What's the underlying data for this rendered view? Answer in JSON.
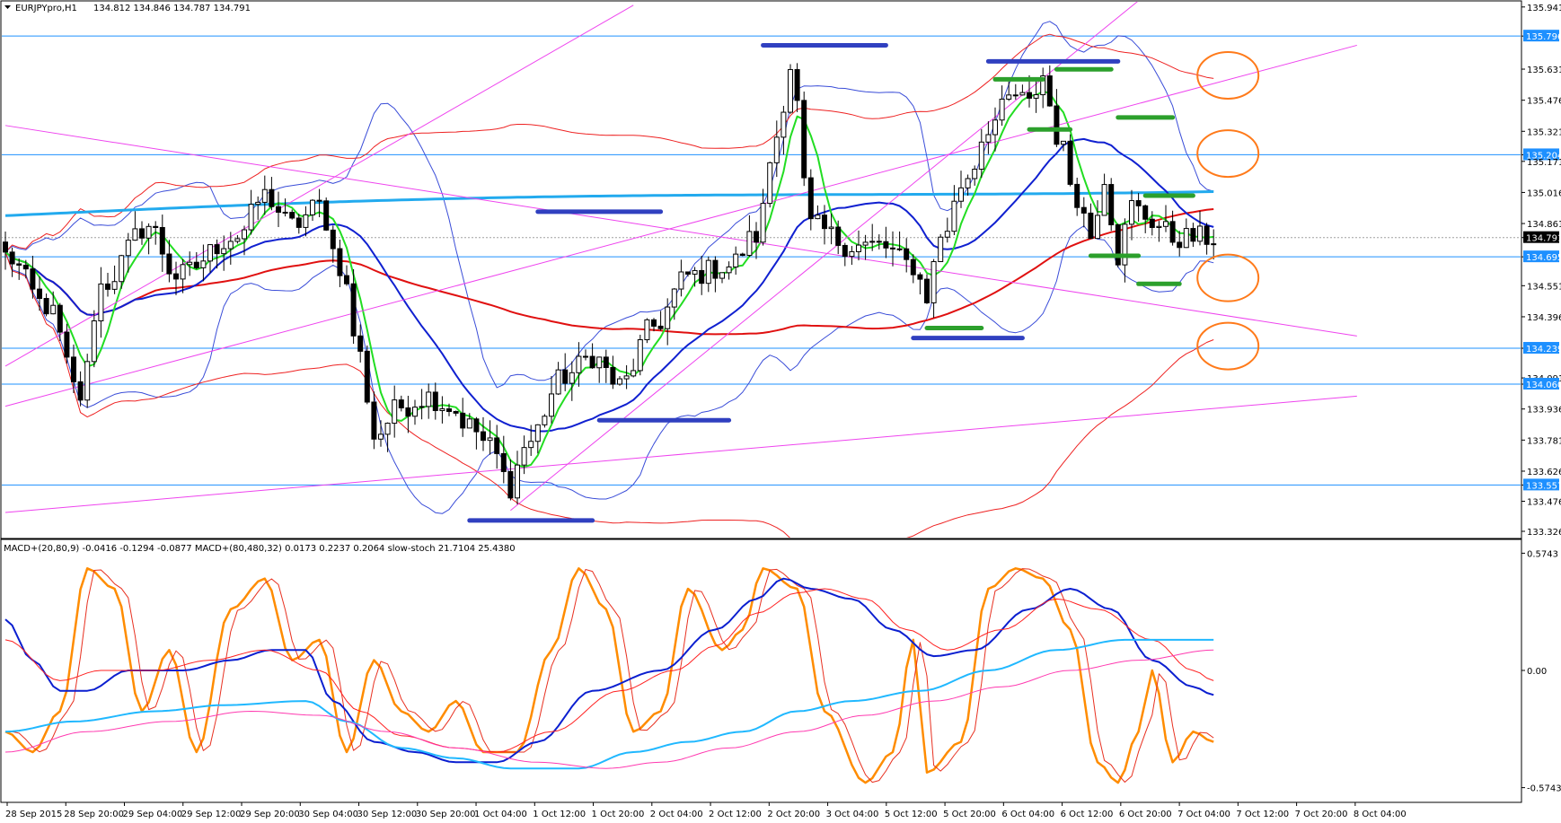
{
  "header": {
    "symbol_text": "EURJPYpro,H1",
    "ohlc_text": "134.812 134.846 134.787 134.791",
    "indicator_text": "MACD+(20,80,9) -0.0416 -0.1294 -0.0877  MACD+(80,480,32) 0.0173 0.2237 0.2064  slow-stoch 21.7104 25.4380"
  },
  "chart_data": [
    {
      "type": "candlestick",
      "title": "EURJPYpro,H1",
      "ylim": [
        133.326,
        135.94
      ],
      "price_ticks": [
        "135.941",
        "135.796",
        "135.631",
        "135.476",
        "135.321",
        "135.204",
        "135.171",
        "135.016",
        "134.861",
        "134.791",
        "134.695",
        "134.551",
        "134.396",
        "134.239",
        "134.091",
        "134.060",
        "133.936",
        "133.781",
        "133.626",
        "133.557",
        "133.476",
        "133.326"
      ],
      "highlight_ticks": [
        "135.796",
        "135.204",
        "134.695",
        "134.239",
        "134.060",
        "133.557"
      ],
      "current_price": "134.791",
      "x_labels": [
        "28 Sep 2015",
        "28 Sep 20:00",
        "29 Sep 04:00",
        "29 Sep 12:00",
        "29 Sep 20:00",
        "30 Sep 04:00",
        "30 Sep 12:00",
        "30 Sep 20:00",
        "1 Oct 04:00",
        "1 Oct 12:00",
        "1 Oct 20:00",
        "2 Oct 04:00",
        "2 Oct 12:00",
        "2 Oct 20:00",
        "3 Oct 04:00",
        "5 Oct 12:00",
        "5 Oct 20:00",
        "6 Oct 04:00",
        "6 Oct 12:00",
        "6 Oct 20:00",
        "7 Oct 04:00",
        "7 Oct 12:00",
        "7 Oct 20:00",
        "8 Oct 04:00"
      ],
      "horizontal_levels": [
        135.796,
        135.204,
        134.695,
        134.239,
        134.06,
        133.557
      ],
      "anchors": [
        {
          "i": 0,
          "price": 134.7
        },
        {
          "i": 6,
          "price": 134.45
        },
        {
          "i": 11,
          "price": 134.0
        },
        {
          "i": 14,
          "price": 134.55
        },
        {
          "i": 21,
          "price": 134.85
        },
        {
          "i": 25,
          "price": 134.6
        },
        {
          "i": 34,
          "price": 134.8
        },
        {
          "i": 38,
          "price": 135.0
        },
        {
          "i": 42,
          "price": 134.85
        },
        {
          "i": 46,
          "price": 134.95
        },
        {
          "i": 49,
          "price": 134.65
        },
        {
          "i": 52,
          "price": 134.2
        },
        {
          "i": 54,
          "price": 133.8
        },
        {
          "i": 58,
          "price": 133.95
        },
        {
          "i": 62,
          "price": 134.0
        },
        {
          "i": 65,
          "price": 133.95
        },
        {
          "i": 68,
          "price": 133.85
        },
        {
          "i": 71,
          "price": 133.75
        },
        {
          "i": 74,
          "price": 133.55
        },
        {
          "i": 76,
          "price": 133.75
        },
        {
          "i": 82,
          "price": 134.1
        },
        {
          "i": 86,
          "price": 134.2
        },
        {
          "i": 90,
          "price": 134.05
        },
        {
          "i": 95,
          "price": 134.35
        },
        {
          "i": 100,
          "price": 134.6
        },
        {
          "i": 106,
          "price": 134.65
        },
        {
          "i": 110,
          "price": 134.8
        },
        {
          "i": 113,
          "price": 135.3
        },
        {
          "i": 115,
          "price": 135.65
        },
        {
          "i": 118,
          "price": 134.85
        },
        {
          "i": 124,
          "price": 134.75
        },
        {
          "i": 128,
          "price": 134.75
        },
        {
          "i": 133,
          "price": 134.65
        },
        {
          "i": 135,
          "price": 134.5
        },
        {
          "i": 137,
          "price": 134.8
        },
        {
          "i": 141,
          "price": 135.1
        },
        {
          "i": 144,
          "price": 135.35
        },
        {
          "i": 148,
          "price": 135.5
        },
        {
          "i": 150,
          "price": 135.45
        },
        {
          "i": 152,
          "price": 135.6
        },
        {
          "i": 154,
          "price": 135.3
        },
        {
          "i": 157,
          "price": 135.0
        },
        {
          "i": 159,
          "price": 134.8
        },
        {
          "i": 161,
          "price": 135.1
        },
        {
          "i": 163,
          "price": 134.7
        },
        {
          "i": 165,
          "price": 134.95
        },
        {
          "i": 167,
          "price": 134.9
        },
        {
          "i": 169,
          "price": 134.85
        },
        {
          "i": 171,
          "price": 134.79
        }
      ],
      "trend_lines": [
        {
          "from": [
            0,
            134.15
          ],
          "to": [
            92,
            135.95
          ],
          "color": "magenta"
        },
        {
          "from": [
            0,
            133.95
          ],
          "to": [
            198,
            135.75
          ],
          "color": "magenta"
        },
        {
          "from": [
            74,
            133.43
          ],
          "to": [
            167,
            136.0
          ],
          "color": "magenta"
        },
        {
          "from": [
            0,
            135.35
          ],
          "to": [
            198,
            134.3
          ],
          "color": "magenta"
        },
        {
          "from": [
            0,
            133.42
          ],
          "to": [
            198,
            134.0
          ],
          "color": "magenta"
        }
      ],
      "support_resistance_marks": [
        {
          "color": "#3040c0",
          "from": [
            78,
            134.92
          ],
          "to": [
            96,
            134.92
          ]
        },
        {
          "color": "#3040c0",
          "from": [
            87,
            133.88
          ],
          "to": [
            106,
            133.88
          ]
        },
        {
          "color": "#3040c0",
          "from": [
            68,
            133.38
          ],
          "to": [
            86,
            133.38
          ]
        },
        {
          "color": "#3040c0",
          "from": [
            111,
            135.75
          ],
          "to": [
            129,
            135.75
          ]
        },
        {
          "color": "#3040c0",
          "from": [
            144,
            135.67
          ],
          "to": [
            163,
            135.67
          ]
        },
        {
          "color": "#3040c0",
          "from": [
            133,
            134.29
          ],
          "to": [
            149,
            134.29
          ]
        },
        {
          "color": "#2ca02c",
          "from": [
            145,
            135.58
          ],
          "to": [
            152,
            135.58
          ]
        },
        {
          "color": "#2ca02c",
          "from": [
            154,
            135.63
          ],
          "to": [
            162,
            135.63
          ]
        },
        {
          "color": "#2ca02c",
          "from": [
            150,
            135.33
          ],
          "to": [
            156,
            135.33
          ]
        },
        {
          "color": "#2ca02c",
          "from": [
            163,
            135.39
          ],
          "to": [
            171,
            135.39
          ]
        },
        {
          "color": "#2ca02c",
          "from": [
            167,
            135.0
          ],
          "to": [
            174,
            135.0
          ]
        },
        {
          "color": "#2ca02c",
          "from": [
            159,
            134.7
          ],
          "to": [
            166,
            134.7
          ]
        },
        {
          "color": "#2ca02c",
          "from": [
            166,
            134.56
          ],
          "to": [
            172,
            134.56
          ]
        },
        {
          "color": "#2ca02c",
          "from": [
            135,
            134.34
          ],
          "to": [
            143,
            134.34
          ]
        }
      ],
      "circle_marks": [
        {
          "i": 177,
          "price": 135.6
        },
        {
          "i": 177,
          "price": 135.21
        },
        {
          "i": 177,
          "price": 134.59
        },
        {
          "i": 177,
          "price": 134.25
        }
      ]
    },
    {
      "type": "line",
      "title": "MACD+(20,80,9)  MACD+(80,480,32)  slow-stoch",
      "ylim": [
        -0.62,
        0.62
      ],
      "ticks": [
        "0.5743",
        "0.00",
        "-0.5743"
      ],
      "series": [
        {
          "name": "stoch-main",
          "color": "#ff8c00",
          "anchors": [
            [
              0,
              -0.3
            ],
            [
              4,
              -0.4
            ],
            [
              8,
              -0.2
            ],
            [
              12,
              0.5
            ],
            [
              16,
              0.4
            ],
            [
              20,
              -0.2
            ],
            [
              24,
              0.1
            ],
            [
              28,
              -0.4
            ],
            [
              33,
              0.3
            ],
            [
              38,
              0.45
            ],
            [
              42,
              0.05
            ],
            [
              46,
              0.15
            ],
            [
              50,
              -0.4
            ],
            [
              54,
              0.05
            ],
            [
              58,
              -0.2
            ],
            [
              62,
              -0.3
            ],
            [
              66,
              -0.15
            ],
            [
              70,
              -0.4
            ],
            [
              75,
              -0.4
            ],
            [
              80,
              0.1
            ],
            [
              84,
              0.5
            ],
            [
              88,
              0.3
            ],
            [
              92,
              -0.3
            ],
            [
              96,
              -0.2
            ],
            [
              100,
              0.4
            ],
            [
              105,
              0.1
            ],
            [
              108,
              0.2
            ],
            [
              111,
              0.5
            ],
            [
              116,
              0.4
            ],
            [
              120,
              -0.2
            ],
            [
              126,
              -0.55
            ],
            [
              130,
              -0.4
            ],
            [
              133,
              0.15
            ],
            [
              135,
              -0.5
            ],
            [
              140,
              -0.35
            ],
            [
              144,
              0.4
            ],
            [
              148,
              0.5
            ],
            [
              152,
              0.45
            ],
            [
              156,
              0.2
            ],
            [
              160,
              -0.45
            ],
            [
              163,
              -0.55
            ],
            [
              166,
              -0.3
            ],
            [
              168,
              0.0
            ],
            [
              171,
              -0.45
            ],
            [
              174,
              -0.3
            ],
            [
              177,
              -0.35
            ]
          ]
        },
        {
          "name": "macd-fast",
          "color": "#0b1fd0",
          "anchors": [
            [
              0,
              0.25
            ],
            [
              4,
              0.05
            ],
            [
              8,
              -0.1
            ],
            [
              12,
              -0.1
            ],
            [
              18,
              0.0
            ],
            [
              26,
              0.0
            ],
            [
              33,
              0.05
            ],
            [
              39,
              0.1
            ],
            [
              44,
              0.1
            ],
            [
              48,
              -0.15
            ],
            [
              54,
              -0.35
            ],
            [
              60,
              -0.4
            ],
            [
              66,
              -0.45
            ],
            [
              72,
              -0.45
            ],
            [
              78,
              -0.35
            ],
            [
              86,
              -0.1
            ],
            [
              96,
              0.0
            ],
            [
              104,
              0.2
            ],
            [
              110,
              0.35
            ],
            [
              114,
              0.45
            ],
            [
              118,
              0.4
            ],
            [
              124,
              0.35
            ],
            [
              130,
              0.2
            ],
            [
              136,
              0.07
            ],
            [
              142,
              0.1
            ],
            [
              150,
              0.3
            ],
            [
              156,
              0.4
            ],
            [
              162,
              0.3
            ],
            [
              168,
              0.05
            ],
            [
              174,
              -0.08
            ],
            [
              177,
              -0.12
            ]
          ]
        },
        {
          "name": "macd-signal",
          "color": "#ff2020",
          "anchors": [
            [
              0,
              0.15
            ],
            [
              8,
              -0.05
            ],
            [
              14,
              0.0
            ],
            [
              22,
              0.0
            ],
            [
              30,
              0.05
            ],
            [
              38,
              0.1
            ],
            [
              46,
              0.0
            ],
            [
              52,
              -0.2
            ],
            [
              58,
              -0.32
            ],
            [
              66,
              -0.38
            ],
            [
              72,
              -0.4
            ],
            [
              80,
              -0.3
            ],
            [
              90,
              -0.1
            ],
            [
              98,
              0.0
            ],
            [
              104,
              0.12
            ],
            [
              110,
              0.28
            ],
            [
              116,
              0.38
            ],
            [
              120,
              0.4
            ],
            [
              126,
              0.35
            ],
            [
              132,
              0.2
            ],
            [
              138,
              0.1
            ],
            [
              146,
              0.2
            ],
            [
              154,
              0.35
            ],
            [
              160,
              0.3
            ],
            [
              168,
              0.15
            ],
            [
              174,
              0.0
            ],
            [
              177,
              -0.05
            ]
          ]
        },
        {
          "name": "macd-slow",
          "color": "#20b8ff",
          "anchors": [
            [
              0,
              -0.3
            ],
            [
              10,
              -0.25
            ],
            [
              22,
              -0.2
            ],
            [
              32,
              -0.17
            ],
            [
              44,
              -0.15
            ],
            [
              50,
              -0.25
            ],
            [
              58,
              -0.38
            ],
            [
              66,
              -0.43
            ],
            [
              74,
              -0.48
            ],
            [
              84,
              -0.48
            ],
            [
              92,
              -0.4
            ],
            [
              100,
              -0.35
            ],
            [
              108,
              -0.3
            ],
            [
              116,
              -0.2
            ],
            [
              124,
              -0.15
            ],
            [
              134,
              -0.1
            ],
            [
              144,
              0.0
            ],
            [
              154,
              0.1
            ],
            [
              164,
              0.15
            ],
            [
              177,
              0.15
            ]
          ]
        },
        {
          "name": "macd-slow-signal",
          "color": "#ff3ab0",
          "anchors": [
            [
              0,
              -0.4
            ],
            [
              12,
              -0.3
            ],
            [
              24,
              -0.25
            ],
            [
              36,
              -0.2
            ],
            [
              46,
              -0.22
            ],
            [
              56,
              -0.3
            ],
            [
              66,
              -0.38
            ],
            [
              78,
              -0.45
            ],
            [
              88,
              -0.48
            ],
            [
              96,
              -0.45
            ],
            [
              106,
              -0.38
            ],
            [
              116,
              -0.3
            ],
            [
              126,
              -0.22
            ],
            [
              136,
              -0.15
            ],
            [
              146,
              -0.08
            ],
            [
              156,
              0.0
            ],
            [
              166,
              0.05
            ],
            [
              177,
              0.1
            ]
          ]
        }
      ]
    }
  ]
}
